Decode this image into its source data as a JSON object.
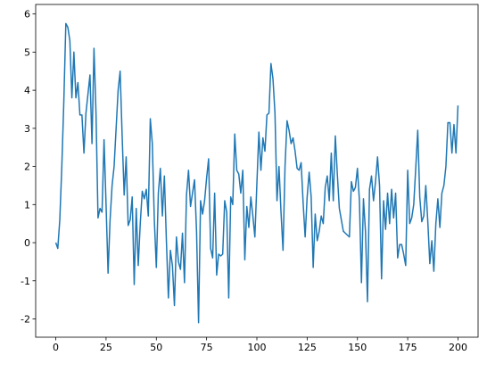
{
  "chart_data": {
    "type": "line",
    "x": [
      0,
      1,
      2,
      3,
      4,
      5,
      6,
      7,
      8,
      9,
      10,
      11,
      12,
      13,
      14,
      15,
      16,
      17,
      18,
      19,
      20,
      21,
      22,
      23,
      24,
      25,
      26,
      27,
      28,
      29,
      30,
      31,
      32,
      33,
      34,
      35,
      36,
      37,
      38,
      39,
      40,
      41,
      42,
      43,
      44,
      45,
      46,
      47,
      48,
      49,
      50,
      51,
      52,
      53,
      54,
      55,
      56,
      57,
      58,
      59,
      60,
      61,
      62,
      63,
      64,
      65,
      66,
      67,
      68,
      69,
      70,
      71,
      72,
      73,
      74,
      75,
      76,
      77,
      78,
      79,
      80,
      81,
      82,
      83,
      84,
      85,
      86,
      87,
      88,
      89,
      90,
      91,
      92,
      93,
      94,
      95,
      96,
      97,
      98,
      99,
      100,
      101,
      102,
      103,
      104,
      105,
      106,
      107,
      108,
      109,
      110,
      111,
      112,
      113,
      114,
      115,
      116,
      117,
      118,
      119,
      120,
      121,
      122,
      123,
      124,
      125,
      126,
      127,
      128,
      129,
      130,
      131,
      132,
      133,
      134,
      135,
      136,
      137,
      138,
      139,
      140,
      141,
      142,
      143,
      144,
      145,
      146,
      147,
      148,
      149,
      150,
      151,
      152,
      153,
      154,
      155,
      156,
      157,
      158,
      159,
      160,
      161,
      162,
      163,
      164,
      165,
      166,
      167,
      168,
      169,
      170,
      171,
      172,
      173,
      174,
      175,
      176,
      177,
      178,
      179,
      180,
      181,
      182,
      183,
      184,
      185,
      186,
      187,
      188,
      189,
      190,
      191,
      192,
      193,
      194,
      195,
      196,
      197,
      198,
      199,
      200
    ],
    "series": [
      {
        "color": "#1f77b4",
        "values": [
          0,
          -0.15,
          0.6,
          2,
          3.7,
          5.75,
          5.65,
          5.3,
          3.8,
          5,
          3.8,
          4.2,
          3.35,
          3.35,
          2.35,
          3.4,
          3.9,
          4.4,
          2.6,
          5.1,
          3.4,
          0.65,
          0.9,
          0.8,
          2.7,
          1,
          -0.8,
          0.6,
          1.5,
          2.0,
          3,
          4,
          4.5,
          2.8,
          1.25,
          2.25,
          0.45,
          0.6,
          1.2,
          -1.1,
          0.9,
          -0.6,
          0.5,
          1.35,
          1.15,
          1.4,
          0.7,
          3.25,
          2.6,
          0.6,
          -0.65,
          1.3,
          1.95,
          0.7,
          1.75,
          0.05,
          -1.45,
          -0.2,
          -0.6,
          -1.65,
          0.15,
          -0.5,
          -0.7,
          0.25,
          -1.05,
          1.25,
          1.9,
          0.95,
          1.3,
          1.65,
          0.3,
          -2.1,
          1.1,
          0.75,
          1.1,
          1.7,
          2.2,
          -0.15,
          -0.4,
          1.3,
          -0.85,
          -0.3,
          -0.35,
          -0.3,
          1.1,
          0.8,
          -1.45,
          1.2,
          1.0,
          2.85,
          1.9,
          1.8,
          1.3,
          1.9,
          -0.45,
          0.95,
          0.4,
          1.2,
          0.7,
          0.15,
          1.55,
          2.9,
          1.9,
          2.75,
          2.4,
          3.35,
          3.4,
          4.7,
          4.3,
          3.4,
          1.1,
          2.0,
          0.8,
          -0.2,
          2.0,
          3.2,
          2.95,
          2.6,
          2.75,
          2.4,
          1.95,
          1.9,
          2.1,
          1.05,
          0.15,
          1.2,
          1.85,
          1.2,
          -0.65,
          0.75,
          0.05,
          0.3,
          0.7,
          0.5,
          1.45,
          1.75,
          1.1,
          2.35,
          1.1,
          2.8,
          1.8,
          0.9,
          0.6,
          0.3,
          0.25,
          0.2,
          0.15,
          1.6,
          1.35,
          1.45,
          1.95,
          1.1,
          -1.05,
          1.15,
          0.3,
          -1.55,
          1.4,
          1.75,
          1.1,
          1.6,
          2.25,
          1.5,
          -0.95,
          1.1,
          0.35,
          1.3,
          0.5,
          1.4,
          0.65,
          1.3,
          -0.4,
          -0.05,
          -0.05,
          -0.3,
          -0.6,
          1.9,
          0.5,
          0.65,
          1.0,
          1.95,
          2.95,
          1.2,
          0.55,
          0.7,
          1.5,
          0.55,
          -0.55,
          0.05,
          -0.75,
          0.5,
          1.15,
          0.4,
          1.3,
          1.5,
          2.0,
          3.15,
          3.15,
          2.35,
          3.1,
          2.35,
          3.6
        ]
      }
    ],
    "xlim": [
      -10,
      210
    ],
    "xticks": [
      0,
      25,
      50,
      75,
      100,
      125,
      150,
      175,
      200
    ],
    "ylim": [
      -2.48,
      6.25
    ],
    "yticks": [
      -2,
      -1,
      0,
      1,
      2,
      3,
      4,
      5,
      6
    ]
  }
}
